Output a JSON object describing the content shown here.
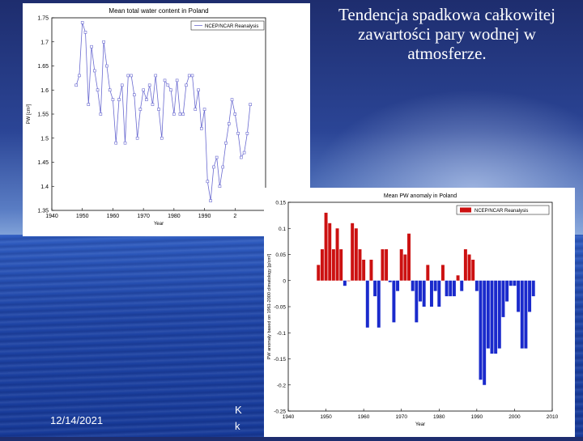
{
  "slide": {
    "title": "Tendencja spadkowa całkowitej zawartości pary wodnej w atmosferze.",
    "date": "12/14/2021",
    "footer_fragments": [
      "K",
      "k"
    ]
  },
  "chart_data": [
    {
      "type": "line",
      "title": "Mean total water content in Poland",
      "xlabel": "Year",
      "ylabel": "PW [cm²]",
      "legend": "NCEP/NCAR Reanalysis",
      "legend_position": "top-right",
      "xlim": [
        1940,
        2010
      ],
      "ylim": [
        1.35,
        1.75
      ],
      "xticks": [
        "1940",
        "1950",
        "1960",
        "1970",
        "1980",
        "1990",
        "2"
      ],
      "yticks": [
        "1.35",
        "1.4",
        "1.45",
        "1.5",
        "1.55",
        "1.6",
        "1.65",
        "1.7",
        "1.75"
      ],
      "series_color": "#6a6ad0",
      "x": [
        1948,
        1949,
        1950,
        1951,
        1952,
        1953,
        1954,
        1955,
        1956,
        1957,
        1958,
        1959,
        1960,
        1961,
        1962,
        1963,
        1964,
        1965,
        1966,
        1967,
        1968,
        1969,
        1970,
        1971,
        1972,
        1973,
        1974,
        1975,
        1976,
        1977,
        1978,
        1979,
        1980,
        1981,
        1982,
        1983,
        1984,
        1985,
        1986,
        1987,
        1988,
        1989,
        1990,
        1991,
        1992,
        1993,
        1994,
        1995,
        1996,
        1997,
        1998,
        1999,
        2000,
        2001,
        2002,
        2003,
        2004,
        2005
      ],
      "y": [
        1.61,
        1.63,
        1.74,
        1.72,
        1.57,
        1.69,
        1.64,
        1.6,
        1.55,
        1.7,
        1.65,
        1.6,
        1.58,
        1.49,
        1.58,
        1.61,
        1.49,
        1.63,
        1.63,
        1.59,
        1.5,
        1.56,
        1.6,
        1.58,
        1.61,
        1.57,
        1.63,
        1.56,
        1.5,
        1.62,
        1.61,
        1.6,
        1.55,
        1.62,
        1.55,
        1.55,
        1.61,
        1.63,
        1.63,
        1.56,
        1.6,
        1.52,
        1.56,
        1.41,
        1.37,
        1.44,
        1.46,
        1.4,
        1.44,
        1.49,
        1.53,
        1.58,
        1.55,
        1.51,
        1.46,
        1.47,
        1.51,
        1.57
      ]
    },
    {
      "type": "bar",
      "title": "Mean PW anomaly in Poland",
      "xlabel": "Year",
      "ylabel": "PW anomaly based on 1961-2000 climatology [g/cm²]",
      "legend": "NCEP/NCAR Reanalysis",
      "legend_position": "top-right",
      "xlim": [
        1940,
        2010
      ],
      "ylim": [
        -0.25,
        0.15
      ],
      "xticks": [
        "1940",
        "1950",
        "1960",
        "1970",
        "1980",
        "1990",
        "2000",
        "2010"
      ],
      "yticks": [
        "0.15",
        "0.1",
        "0.05",
        "0",
        "-0.05",
        "-0.1",
        "-0.15",
        "-0.2",
        "-0.25"
      ],
      "positive_color": "#cc1111",
      "negative_color": "#1a2acc",
      "x": [
        1948,
        1949,
        1950,
        1951,
        1952,
        1953,
        1954,
        1955,
        1956,
        1957,
        1958,
        1959,
        1960,
        1961,
        1962,
        1963,
        1964,
        1965,
        1966,
        1967,
        1968,
        1969,
        1970,
        1971,
        1972,
        1973,
        1974,
        1975,
        1976,
        1977,
        1978,
        1979,
        1980,
        1981,
        1982,
        1983,
        1984,
        1985,
        1986,
        1987,
        1988,
        1989,
        1990,
        1991,
        1992,
        1993,
        1994,
        1995,
        1996,
        1997,
        1998,
        1999,
        2000,
        2001,
        2002,
        2003,
        2004,
        2005
      ],
      "values": [
        0.03,
        0.06,
        0.13,
        0.11,
        0.06,
        0.1,
        0.06,
        -0.01,
        0.0,
        0.11,
        0.1,
        0.06,
        0.04,
        -0.09,
        0.04,
        -0.03,
        -0.09,
        0.06,
        0.06,
        -0.003,
        -0.08,
        -0.02,
        0.06,
        0.05,
        0.09,
        -0.02,
        -0.08,
        -0.04,
        -0.05,
        0.03,
        -0.05,
        -0.02,
        -0.05,
        0.03,
        -0.03,
        -0.03,
        -0.03,
        0.01,
        -0.02,
        0.06,
        0.05,
        0.04,
        -0.02,
        -0.19,
        -0.2,
        -0.13,
        -0.14,
        -0.14,
        -0.13,
        -0.07,
        -0.04,
        -0.01,
        -0.01,
        -0.06,
        -0.13,
        -0.13,
        -0.06,
        -0.03
      ]
    }
  ]
}
